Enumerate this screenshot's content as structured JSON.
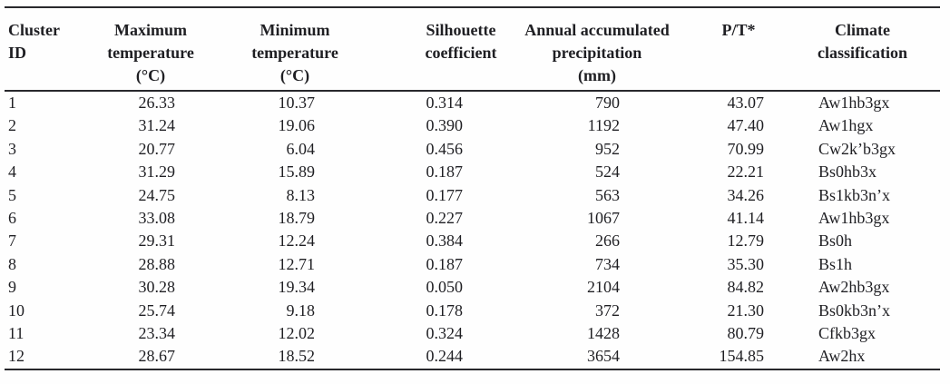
{
  "chart_data": {
    "type": "table",
    "columns": [
      {
        "label": "Cluster\nID"
      },
      {
        "label": "Maximum\ntemperature\n(°C)"
      },
      {
        "label": "Minimum\ntemperature\n(°C)"
      },
      {
        "label": "Silhouette\ncoefficient"
      },
      {
        "label": "Annual accumulated\nprecipitation\n(mm)"
      },
      {
        "label": "P/T*"
      },
      {
        "label": "Climate\nclassification"
      }
    ],
    "rows": [
      [
        "1",
        "26.33",
        "10.37",
        "0.314",
        "790",
        "43.07",
        "Aw1hb3gx"
      ],
      [
        "2",
        "31.24",
        "19.06",
        "0.390",
        "1192",
        "47.40",
        "Aw1hgx"
      ],
      [
        "3",
        "20.77",
        "6.04",
        "0.456",
        "952",
        "70.99",
        "Cw2k’b3gx"
      ],
      [
        "4",
        "31.29",
        "15.89",
        "0.187",
        "524",
        "22.21",
        "Bs0hb3x"
      ],
      [
        "5",
        "24.75",
        "8.13",
        "0.177",
        "563",
        "34.26",
        "Bs1kb3n’x"
      ],
      [
        "6",
        "33.08",
        "18.79",
        "0.227",
        "1067",
        "41.14",
        "Aw1hb3gx"
      ],
      [
        "7",
        "29.31",
        "12.24",
        "0.384",
        "266",
        "12.79",
        "Bs0h"
      ],
      [
        "8",
        "28.88",
        "12.71",
        "0.187",
        "734",
        "35.30",
        "Bs1h"
      ],
      [
        "9",
        "30.28",
        "19.34",
        "0.050",
        "2104",
        "84.82",
        "Aw2hb3gx"
      ],
      [
        "10",
        "25.74",
        "9.18",
        "0.178",
        "372",
        "21.30",
        "Bs0kb3n’x"
      ],
      [
        "11",
        "23.34",
        "12.02",
        "0.324",
        "1428",
        "80.79",
        "Cfkb3gx"
      ],
      [
        "12",
        "28.67",
        "18.52",
        "0.244",
        "3654",
        "154.85",
        "Aw2hx"
      ]
    ]
  },
  "colors": {
    "text": "#1f1f23",
    "rule": "#28282c",
    "background": "#fefefe"
  }
}
